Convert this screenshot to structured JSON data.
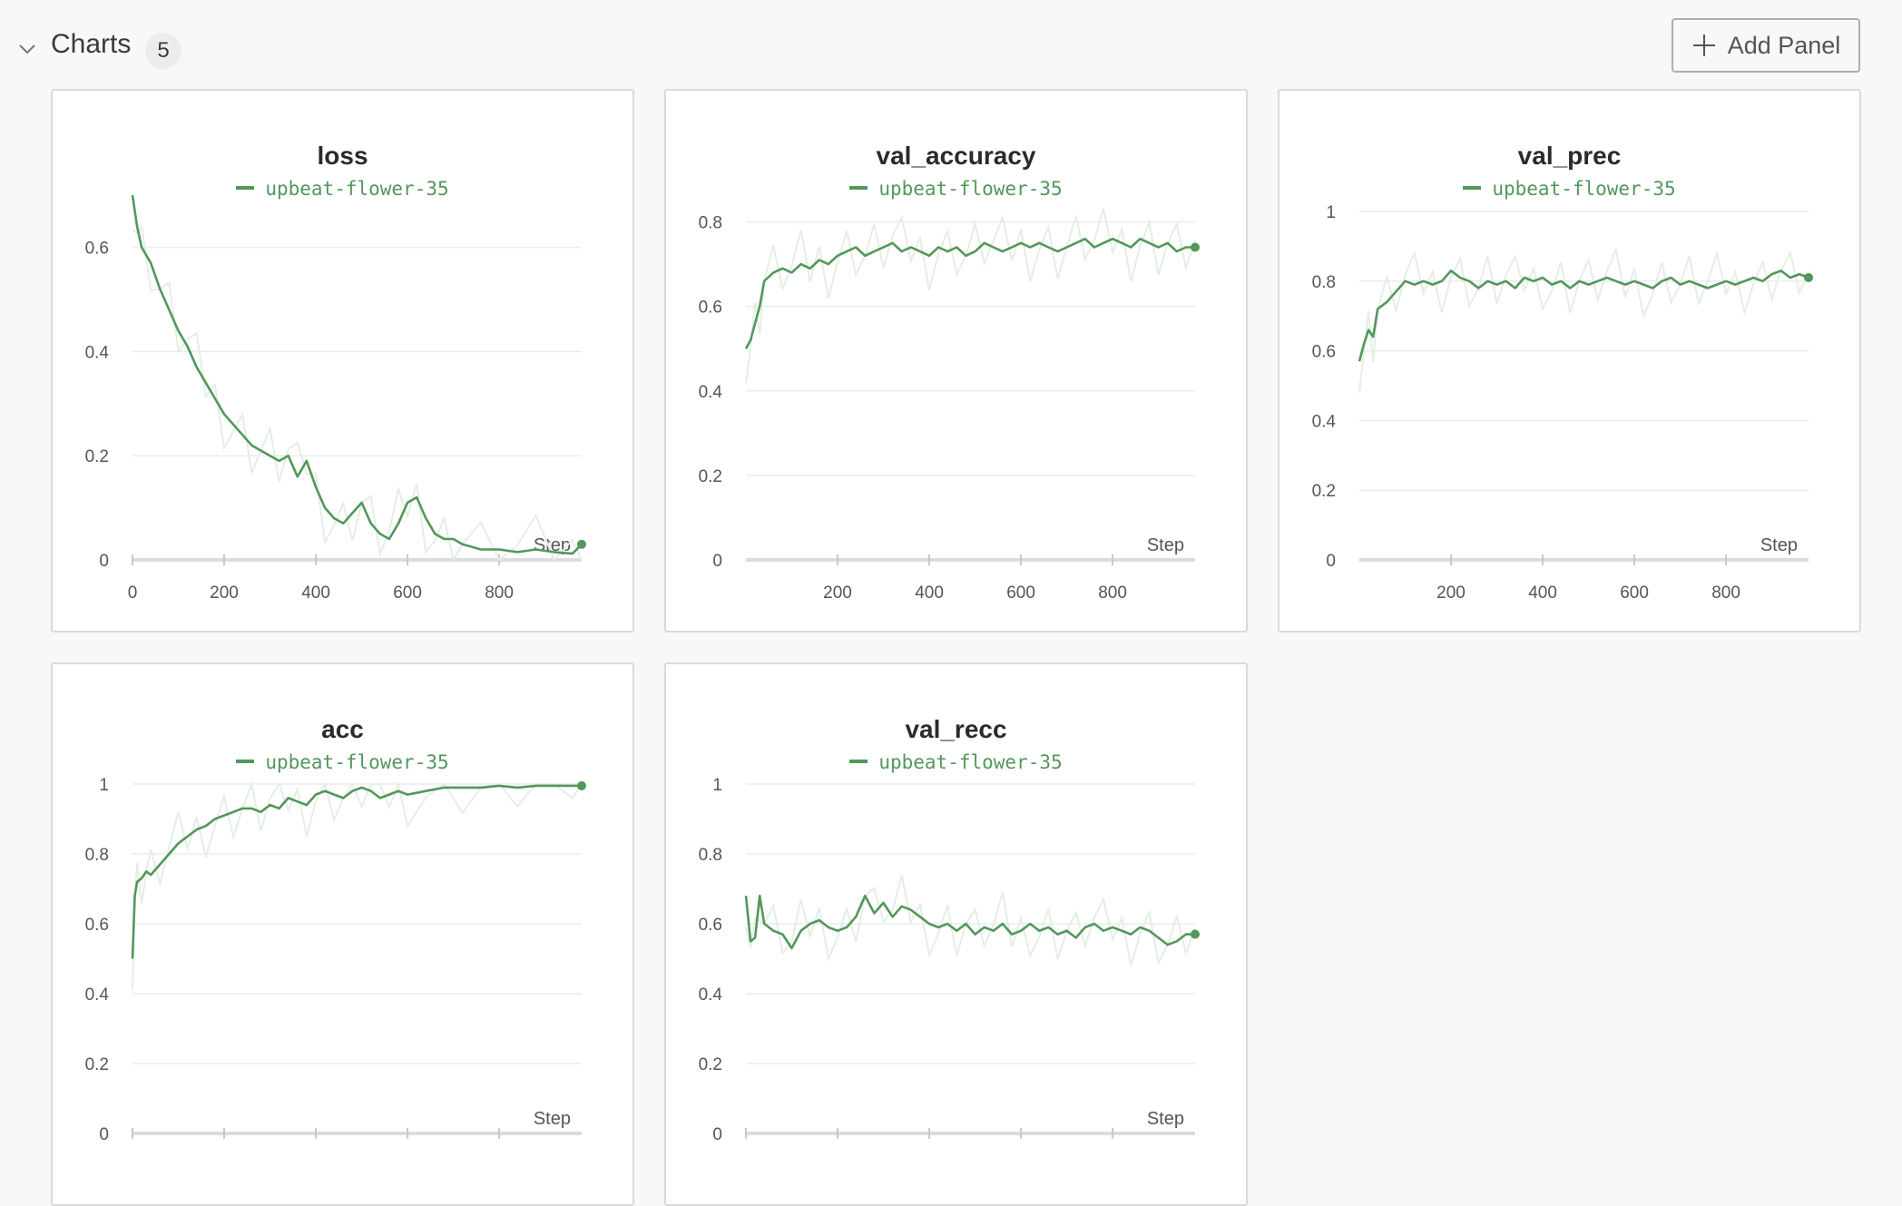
{
  "section": {
    "title": "Charts",
    "count": "5",
    "add_panel_label": "Add Panel"
  },
  "panels": [
    {
      "title": "loss",
      "run": "upbeat-flower-35"
    },
    {
      "title": "val_accuracy",
      "run": "upbeat-flower-35"
    },
    {
      "title": "val_prec",
      "run": "upbeat-flower-35"
    },
    {
      "title": "acc",
      "run": "upbeat-flower-35"
    },
    {
      "title": "val_recc",
      "run": "upbeat-flower-35"
    }
  ],
  "colors": {
    "series": "#53975b",
    "series_raw": "#e3efe4",
    "grid": "#ececec",
    "axis": "#dcdcdc"
  },
  "chart_data": [
    {
      "type": "line",
      "title": "loss",
      "xlabel": "Step",
      "ylabel": "",
      "legend": [
        "upbeat-flower-35"
      ],
      "legend_position": "top",
      "xlim": [
        0,
        980
      ],
      "ylim": [
        0,
        0.73
      ],
      "x_ticks": [
        "0",
        "200",
        "400",
        "600",
        "800"
      ],
      "y_ticks": [
        "0",
        "0.2",
        "0.4",
        "0.6"
      ],
      "series": [
        {
          "name": "upbeat-flower-35",
          "x": [
            0,
            10,
            20,
            40,
            60,
            80,
            100,
            120,
            140,
            160,
            180,
            200,
            220,
            240,
            260,
            280,
            300,
            320,
            340,
            360,
            380,
            400,
            420,
            440,
            460,
            480,
            500,
            520,
            540,
            560,
            580,
            600,
            620,
            640,
            660,
            680,
            700,
            720,
            760,
            800,
            840,
            880,
            920,
            960,
            980
          ],
          "y": [
            0.7,
            0.64,
            0.6,
            0.57,
            0.52,
            0.48,
            0.44,
            0.41,
            0.37,
            0.34,
            0.31,
            0.28,
            0.26,
            0.24,
            0.22,
            0.21,
            0.2,
            0.19,
            0.2,
            0.16,
            0.19,
            0.14,
            0.1,
            0.08,
            0.07,
            0.09,
            0.11,
            0.07,
            0.05,
            0.04,
            0.07,
            0.11,
            0.12,
            0.08,
            0.05,
            0.04,
            0.04,
            0.03,
            0.02,
            0.02,
            0.015,
            0.02,
            0.015,
            0.012,
            0.03
          ]
        }
      ]
    },
    {
      "type": "line",
      "title": "val_accuracy",
      "xlabel": "Step",
      "ylabel": "",
      "legend": [
        "upbeat-flower-35"
      ],
      "legend_position": "top",
      "xlim": [
        0,
        980
      ],
      "ylim": [
        0,
        0.9
      ],
      "x_ticks": [
        "200",
        "400",
        "600",
        "800"
      ],
      "y_ticks": [
        "0",
        "0.2",
        "0.4",
        "0.6",
        "0.8"
      ],
      "series": [
        {
          "name": "upbeat-flower-35",
          "x": [
            0,
            10,
            20,
            30,
            40,
            60,
            80,
            100,
            120,
            140,
            160,
            180,
            200,
            220,
            240,
            260,
            280,
            300,
            320,
            340,
            360,
            380,
            400,
            420,
            440,
            460,
            480,
            500,
            520,
            540,
            560,
            580,
            600,
            620,
            640,
            660,
            680,
            700,
            720,
            740,
            760,
            780,
            800,
            820,
            840,
            860,
            880,
            900,
            920,
            940,
            960,
            980
          ],
          "y": [
            0.5,
            0.52,
            0.56,
            0.6,
            0.66,
            0.68,
            0.69,
            0.68,
            0.7,
            0.69,
            0.71,
            0.7,
            0.72,
            0.73,
            0.74,
            0.72,
            0.73,
            0.74,
            0.75,
            0.73,
            0.74,
            0.73,
            0.72,
            0.74,
            0.73,
            0.74,
            0.72,
            0.73,
            0.75,
            0.74,
            0.73,
            0.74,
            0.75,
            0.74,
            0.75,
            0.74,
            0.73,
            0.74,
            0.75,
            0.76,
            0.74,
            0.75,
            0.76,
            0.75,
            0.74,
            0.76,
            0.75,
            0.74,
            0.75,
            0.73,
            0.74,
            0.74
          ]
        }
      ]
    },
    {
      "type": "line",
      "title": "val_prec",
      "xlabel": "Step",
      "ylabel": "",
      "legend": [
        "upbeat-flower-35"
      ],
      "legend_position": "top",
      "xlim": [
        0,
        980
      ],
      "ylim": [
        0,
        1
      ],
      "x_ticks": [
        "200",
        "400",
        "600",
        "800"
      ],
      "y_ticks": [
        "0",
        "0.2",
        "0.4",
        "0.6",
        "0.8",
        "1"
      ],
      "series": [
        {
          "name": "upbeat-flower-35",
          "x": [
            0,
            10,
            20,
            30,
            40,
            60,
            80,
            100,
            120,
            140,
            160,
            180,
            200,
            220,
            240,
            260,
            280,
            300,
            320,
            340,
            360,
            380,
            400,
            420,
            440,
            460,
            480,
            500,
            520,
            540,
            560,
            580,
            600,
            620,
            640,
            660,
            680,
            700,
            720,
            740,
            760,
            780,
            800,
            820,
            840,
            860,
            880,
            900,
            920,
            940,
            960,
            980
          ],
          "y": [
            0.57,
            0.62,
            0.66,
            0.64,
            0.72,
            0.74,
            0.77,
            0.8,
            0.79,
            0.8,
            0.79,
            0.8,
            0.83,
            0.81,
            0.8,
            0.78,
            0.8,
            0.79,
            0.8,
            0.78,
            0.81,
            0.8,
            0.81,
            0.79,
            0.8,
            0.78,
            0.8,
            0.79,
            0.8,
            0.81,
            0.8,
            0.79,
            0.8,
            0.79,
            0.78,
            0.8,
            0.81,
            0.79,
            0.8,
            0.79,
            0.78,
            0.79,
            0.8,
            0.79,
            0.8,
            0.81,
            0.8,
            0.82,
            0.83,
            0.81,
            0.82,
            0.81
          ]
        }
      ]
    },
    {
      "type": "line",
      "title": "acc",
      "xlabel": "Step",
      "ylabel": "",
      "legend": [
        "upbeat-flower-35"
      ],
      "legend_position": "top",
      "xlim": [
        0,
        980
      ],
      "ylim": [
        0,
        1
      ],
      "x_ticks": [],
      "y_ticks": [
        "0",
        "0.2",
        "0.4",
        "0.6",
        "0.8",
        "1"
      ],
      "series": [
        {
          "name": "upbeat-flower-35",
          "x": [
            0,
            5,
            10,
            20,
            30,
            40,
            60,
            80,
            100,
            120,
            140,
            160,
            180,
            200,
            220,
            240,
            260,
            280,
            300,
            320,
            340,
            360,
            380,
            400,
            420,
            440,
            460,
            480,
            500,
            520,
            540,
            560,
            580,
            600,
            640,
            680,
            720,
            760,
            800,
            840,
            880,
            920,
            960,
            980
          ],
          "y": [
            0.5,
            0.68,
            0.72,
            0.73,
            0.75,
            0.74,
            0.77,
            0.8,
            0.83,
            0.85,
            0.87,
            0.88,
            0.9,
            0.91,
            0.92,
            0.93,
            0.93,
            0.92,
            0.94,
            0.93,
            0.96,
            0.95,
            0.94,
            0.97,
            0.98,
            0.97,
            0.96,
            0.98,
            0.99,
            0.98,
            0.96,
            0.97,
            0.98,
            0.97,
            0.98,
            0.99,
            0.99,
            0.99,
            0.995,
            0.99,
            0.995,
            0.995,
            0.995,
            0.995
          ]
        }
      ]
    },
    {
      "type": "line",
      "title": "val_recc",
      "xlabel": "Step",
      "ylabel": "",
      "legend": [
        "upbeat-flower-35"
      ],
      "legend_position": "top",
      "xlim": [
        0,
        980
      ],
      "ylim": [
        0,
        1
      ],
      "x_ticks": [],
      "y_ticks": [
        "0",
        "0.2",
        "0.4",
        "0.6",
        "0.8",
        "1"
      ],
      "series": [
        {
          "name": "upbeat-flower-35",
          "x": [
            0,
            10,
            20,
            30,
            40,
            60,
            80,
            100,
            120,
            140,
            160,
            180,
            200,
            220,
            240,
            260,
            280,
            300,
            320,
            340,
            360,
            380,
            400,
            420,
            440,
            460,
            480,
            500,
            520,
            540,
            560,
            580,
            600,
            620,
            640,
            660,
            680,
            700,
            720,
            740,
            760,
            780,
            800,
            820,
            840,
            860,
            880,
            900,
            920,
            940,
            960,
            980
          ],
          "y": [
            0.68,
            0.55,
            0.56,
            0.68,
            0.6,
            0.58,
            0.57,
            0.53,
            0.58,
            0.6,
            0.61,
            0.59,
            0.58,
            0.59,
            0.62,
            0.68,
            0.63,
            0.66,
            0.62,
            0.65,
            0.64,
            0.62,
            0.6,
            0.59,
            0.6,
            0.58,
            0.6,
            0.57,
            0.59,
            0.58,
            0.6,
            0.57,
            0.58,
            0.6,
            0.58,
            0.59,
            0.57,
            0.58,
            0.56,
            0.59,
            0.6,
            0.58,
            0.59,
            0.58,
            0.57,
            0.59,
            0.58,
            0.56,
            0.54,
            0.55,
            0.57,
            0.57
          ]
        }
      ]
    }
  ]
}
